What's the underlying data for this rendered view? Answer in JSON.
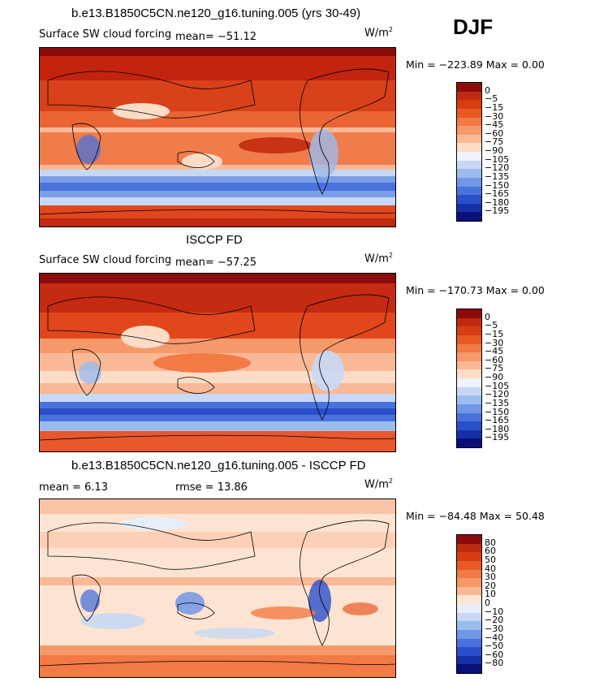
{
  "season": "DJF",
  "panels": [
    {
      "title": "b.e13.B1850C5CN.ne120_g16.tuning.005 (yrs 30-49)",
      "left_text": "Surface SW cloud forcing",
      "right_text": "mean=  −51.12",
      "units": "W/m",
      "units_exp": "2",
      "minmax": "Min = −223.89  Max =    0.00"
    },
    {
      "title": "ISCCP FD",
      "left_text": "Surface SW cloud forcing",
      "right_text": "mean=  −57.25",
      "units": "W/m",
      "units_exp": "2",
      "minmax": "Min = −170.73  Max =    0.00"
    },
    {
      "title": "b.e13.B1850C5CN.ne120_g16.tuning.005 - ISCCP FD",
      "left_text": "mean =    6.13",
      "right_text": "rmse =   13.86",
      "units": "W/m",
      "units_exp": "2",
      "minmax": "Min = −84.48  Max =   50.48"
    }
  ],
  "colorbars": {
    "abs_levels": [
      "0",
      "−5",
      "−15",
      "−30",
      "−45",
      "−60",
      "−75",
      "−90",
      "−105",
      "−120",
      "−135",
      "−150",
      "−165",
      "−180",
      "−195"
    ],
    "abs_colors": [
      "#8c0b0b",
      "#bf2a10",
      "#d83c12",
      "#e85a24",
      "#f27a45",
      "#f6996a",
      "#f9b896",
      "#fcdcc6",
      "#eef3fb",
      "#c6d8f4",
      "#9cbcee",
      "#7197e6",
      "#4a72dc",
      "#2a4fcb",
      "#1530a8",
      "#0a1078"
    ],
    "diff_levels": [
      "80",
      "60",
      "50",
      "40",
      "30",
      "20",
      "10",
      "0",
      "−10",
      "−20",
      "−30",
      "−40",
      "−50",
      "−60",
      "−80"
    ],
    "diff_colors": [
      "#8c0b0b",
      "#bf2a10",
      "#d83c12",
      "#e85a24",
      "#f27a45",
      "#f6996a",
      "#f9b896",
      "#fde4d2",
      "#e6eefa",
      "#c6d8f4",
      "#9cbcee",
      "#7197e6",
      "#4a72dc",
      "#2a4fcb",
      "#1530a8",
      "#0a1078"
    ]
  },
  "chart_data": {
    "type": "heatmap",
    "variable": "Surface SW cloud forcing",
    "units": "W/m2",
    "season": "DJF",
    "maps": [
      {
        "name": "b.e13.B1850C5CN.ne120_g16.tuning.005 (yrs 30-49)",
        "mean": -51.12,
        "min": -223.89,
        "max": 0.0
      },
      {
        "name": "ISCCP FD",
        "mean": -57.25,
        "min": -170.73,
        "max": 0.0
      },
      {
        "name": "b.e13.B1850C5CN.ne120_g16.tuning.005 - ISCCP FD",
        "mean": 6.13,
        "rmse": 13.86,
        "min": -84.48,
        "max": 50.48
      }
    ]
  }
}
